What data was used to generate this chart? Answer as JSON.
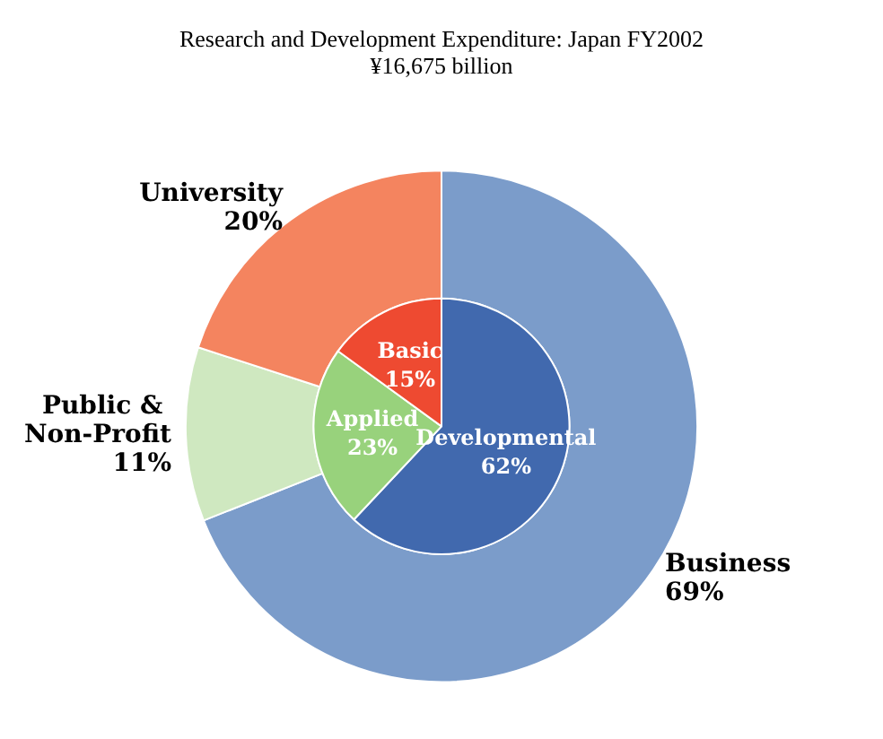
{
  "chart_data": [
    {
      "type": "donut",
      "title": "Research and Development Expenditure: Japan FY2002",
      "subtitle": "¥16,675 billion",
      "categories": [
        "Business",
        "Public & Non-Profit",
        "University"
      ],
      "values": [
        69,
        11,
        20
      ],
      "colors": [
        "#7b9cca",
        "#cfe8c0",
        "#f4845f"
      ],
      "value_labels": [
        "69%",
        "11%",
        "20%"
      ]
    },
    {
      "type": "pie",
      "categories": [
        "Developmental",
        "Applied",
        "Basic"
      ],
      "values": [
        62,
        23,
        15
      ],
      "colors": [
        "#4169ae",
        "#98d27c",
        "#ee4a31"
      ],
      "value_labels": [
        "62%",
        "23%",
        "15%"
      ]
    }
  ]
}
